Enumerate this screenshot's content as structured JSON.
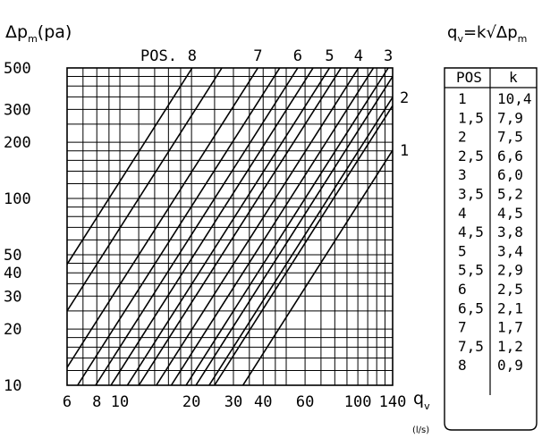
{
  "chart_data": {
    "type": "line",
    "x_scale": "log",
    "y_scale": "log",
    "xlim": [
      6,
      140
    ],
    "ylim": [
      10,
      500
    ],
    "x_ticks": [
      6,
      8,
      10,
      20,
      30,
      40,
      60,
      100,
      140
    ],
    "y_ticks": [
      10,
      20,
      30,
      40,
      50,
      100,
      200,
      300,
      500
    ],
    "x_grid": [
      6,
      7,
      8,
      9,
      10,
      12,
      14,
      16,
      18,
      20,
      25,
      30,
      35,
      40,
      45,
      50,
      60,
      70,
      80,
      90,
      100,
      110,
      120,
      130,
      140
    ],
    "y_grid": [
      10,
      12,
      14,
      16,
      18,
      20,
      25,
      30,
      35,
      40,
      45,
      50,
      60,
      70,
      80,
      90,
      100,
      120,
      140,
      160,
      180,
      200,
      250,
      300,
      350,
      400,
      450,
      500
    ],
    "grid": true,
    "xlabel": "q",
    "xlabel_sub": "v",
    "xunits": "(l/s)",
    "ylabel": "Δp",
    "ylabel_sub": "m",
    "ylabel_units": "(pa)",
    "formula": {
      "lhs": "q",
      "lhs_sub": "v",
      "rhs": "=k√Δp",
      "rhs_sub": "m"
    },
    "top_label": "POS.",
    "series": [
      {
        "name": "1",
        "k": 10.4,
        "label_side": "right"
      },
      {
        "name": "1,5",
        "k": 7.9,
        "label_side": "none"
      },
      {
        "name": "2",
        "k": 7.5,
        "label_side": "right"
      },
      {
        "name": "2,5",
        "k": 6.6,
        "label_side": "none"
      },
      {
        "name": "3",
        "k": 6.0,
        "label_side": "top"
      },
      {
        "name": "3,5",
        "k": 5.2,
        "label_side": "none"
      },
      {
        "name": "4",
        "k": 4.5,
        "label_side": "top"
      },
      {
        "name": "4,5",
        "k": 3.8,
        "label_side": "none"
      },
      {
        "name": "5",
        "k": 3.4,
        "label_side": "top"
      },
      {
        "name": "5,5",
        "k": 2.9,
        "label_side": "none"
      },
      {
        "name": "6",
        "k": 2.5,
        "label_side": "top"
      },
      {
        "name": "6,5",
        "k": 2.1,
        "label_side": "none"
      },
      {
        "name": "7",
        "k": 1.7,
        "label_side": "top"
      },
      {
        "name": "7,5",
        "k": 1.2,
        "label_side": "none"
      },
      {
        "name": "8",
        "k": 0.9,
        "label_side": "top"
      }
    ],
    "table": {
      "headers": [
        "POS",
        "k"
      ],
      "rows": [
        [
          "1",
          "10,4"
        ],
        [
          "1,5",
          "7,9"
        ],
        [
          "2",
          "7,5"
        ],
        [
          "2,5",
          "6,6"
        ],
        [
          "3",
          "6,0"
        ],
        [
          "3,5",
          "5,2"
        ],
        [
          "4",
          "4,5"
        ],
        [
          "4,5",
          "3,8"
        ],
        [
          "5",
          "3,4"
        ],
        [
          "5,5",
          "2,9"
        ],
        [
          "6",
          "2,5"
        ],
        [
          "6,5",
          "2,1"
        ],
        [
          "7",
          "1,7"
        ],
        [
          "7,5",
          "1,2"
        ],
        [
          "8",
          "0,9"
        ]
      ]
    }
  }
}
